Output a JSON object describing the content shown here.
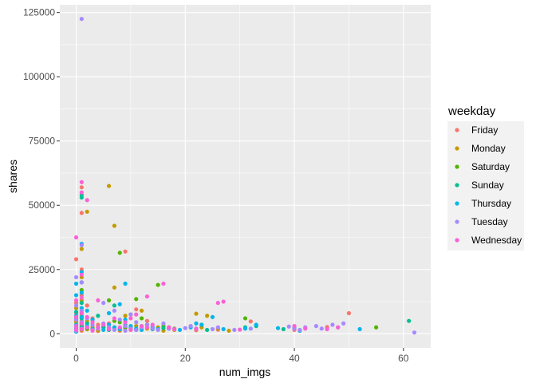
{
  "chart_data": {
    "type": "scatter",
    "title": "",
    "xlabel": "num_imgs",
    "ylabel": "shares",
    "xlim": [
      -3,
      65
    ],
    "ylim": [
      -5500,
      128000
    ],
    "x_ticks": [
      0,
      20,
      40,
      60
    ],
    "y_ticks": [
      0,
      25000,
      50000,
      75000,
      100000,
      125000
    ],
    "y_tick_labels": [
      "0",
      "25000",
      "50000",
      "75000",
      "100000",
      "125000"
    ],
    "grid": true,
    "legend_position": "right",
    "legend_title": "weekday",
    "series": [
      {
        "name": "Friday",
        "color": "#F8766D",
        "points": [
          [
            0,
            29000
          ],
          [
            0,
            12000
          ],
          [
            0,
            8000
          ],
          [
            0,
            5000
          ],
          [
            0,
            3000
          ],
          [
            0,
            1500
          ],
          [
            0,
            900
          ],
          [
            1,
            57000
          ],
          [
            1,
            47000
          ],
          [
            1,
            25000
          ],
          [
            1,
            15000
          ],
          [
            1,
            9000
          ],
          [
            1,
            5000
          ],
          [
            1,
            2500
          ],
          [
            1,
            1200
          ],
          [
            2,
            11000
          ],
          [
            2,
            4000
          ],
          [
            2,
            1800
          ],
          [
            3,
            6000
          ],
          [
            3,
            2000
          ],
          [
            4,
            3500
          ],
          [
            4,
            1100
          ],
          [
            5,
            2500
          ],
          [
            6,
            4000
          ],
          [
            6,
            1500
          ],
          [
            7,
            2000
          ],
          [
            8,
            1200
          ],
          [
            9,
            32000
          ],
          [
            9,
            3000
          ],
          [
            10,
            2000
          ],
          [
            11,
            9500
          ],
          [
            11,
            1500
          ],
          [
            12,
            2200
          ],
          [
            13,
            5000
          ],
          [
            15,
            1800
          ],
          [
            17,
            2500
          ],
          [
            22,
            1400
          ],
          [
            26,
            1600
          ],
          [
            32,
            4800
          ],
          [
            40,
            1500
          ],
          [
            41,
            1200
          ],
          [
            46,
            2600
          ],
          [
            50,
            8000
          ]
        ]
      },
      {
        "name": "Monday",
        "color": "#C49A00",
        "points": [
          [
            0,
            10000
          ],
          [
            0,
            4500
          ],
          [
            0,
            2000
          ],
          [
            0,
            1000
          ],
          [
            1,
            33000
          ],
          [
            1,
            22000
          ],
          [
            1,
            13000
          ],
          [
            1,
            7000
          ],
          [
            1,
            3500
          ],
          [
            1,
            1500
          ],
          [
            2,
            47500
          ],
          [
            2,
            5000
          ],
          [
            2,
            1800
          ],
          [
            3,
            2500
          ],
          [
            4,
            1300
          ],
          [
            6,
            57500
          ],
          [
            7,
            42000
          ],
          [
            7,
            18000
          ],
          [
            7,
            2500
          ],
          [
            8,
            1500
          ],
          [
            9,
            7000
          ],
          [
            9,
            2200
          ],
          [
            10,
            1500
          ],
          [
            11,
            3000
          ],
          [
            12,
            9000
          ],
          [
            13,
            2000
          ],
          [
            15,
            2500
          ],
          [
            16,
            1200
          ],
          [
            18,
            1500
          ],
          [
            22,
            7800
          ],
          [
            23,
            2500
          ],
          [
            24,
            7000
          ],
          [
            26,
            2000
          ],
          [
            28,
            1200
          ]
        ]
      },
      {
        "name": "Saturday",
        "color": "#53B400",
        "points": [
          [
            0,
            6000
          ],
          [
            0,
            2500
          ],
          [
            0,
            1200
          ],
          [
            1,
            17000
          ],
          [
            1,
            8000
          ],
          [
            1,
            3000
          ],
          [
            2,
            2000
          ],
          [
            3,
            1500
          ],
          [
            5,
            2800
          ],
          [
            6,
            13000
          ],
          [
            7,
            5000
          ],
          [
            8,
            31500
          ],
          [
            8,
            4500
          ],
          [
            9,
            2500
          ],
          [
            10,
            7500
          ],
          [
            11,
            13500
          ],
          [
            12,
            6000
          ],
          [
            13,
            3500
          ],
          [
            15,
            19000
          ],
          [
            16,
            3000
          ],
          [
            18,
            2000
          ],
          [
            23,
            3500
          ],
          [
            31,
            6000
          ],
          [
            55,
            2500
          ]
        ]
      },
      {
        "name": "Sunday",
        "color": "#00C094",
        "points": [
          [
            0,
            8500
          ],
          [
            0,
            3000
          ],
          [
            0,
            1500
          ],
          [
            1,
            54000
          ],
          [
            1,
            53000
          ],
          [
            1,
            20000
          ],
          [
            1,
            12000
          ],
          [
            1,
            6000
          ],
          [
            1,
            2500
          ],
          [
            2,
            4000
          ],
          [
            3,
            1800
          ],
          [
            4,
            7000
          ],
          [
            5,
            2500
          ],
          [
            6,
            1500
          ],
          [
            7,
            11000
          ],
          [
            8,
            2000
          ],
          [
            9,
            3500
          ],
          [
            10,
            2500
          ],
          [
            11,
            1500
          ],
          [
            12,
            3000
          ],
          [
            14,
            1800
          ],
          [
            16,
            2200
          ],
          [
            22,
            2000
          ],
          [
            24,
            1500
          ],
          [
            31,
            2500
          ],
          [
            33,
            3000
          ],
          [
            38,
            1800
          ],
          [
            40,
            2200
          ],
          [
            61,
            5000
          ]
        ]
      },
      {
        "name": "Thursday",
        "color": "#00B6EB",
        "points": [
          [
            0,
            19500
          ],
          [
            0,
            15000
          ],
          [
            0,
            7000
          ],
          [
            0,
            3500
          ],
          [
            0,
            1800
          ],
          [
            0,
            800
          ],
          [
            1,
            35000
          ],
          [
            1,
            24000
          ],
          [
            1,
            16000
          ],
          [
            1,
            10000
          ],
          [
            1,
            6500
          ],
          [
            1,
            4000
          ],
          [
            1,
            2000
          ],
          [
            2,
            9000
          ],
          [
            2,
            3000
          ],
          [
            3,
            5500
          ],
          [
            3,
            1800
          ],
          [
            4,
            2500
          ],
          [
            5,
            1500
          ],
          [
            6,
            8000
          ],
          [
            6,
            3500
          ],
          [
            7,
            2500
          ],
          [
            8,
            11500
          ],
          [
            8,
            1800
          ],
          [
            9,
            19500
          ],
          [
            9,
            5500
          ],
          [
            10,
            3000
          ],
          [
            11,
            2000
          ],
          [
            12,
            1500
          ],
          [
            13,
            3500
          ],
          [
            14,
            2500
          ],
          [
            15,
            1800
          ],
          [
            17,
            2000
          ],
          [
            19,
            1500
          ],
          [
            21,
            2500
          ],
          [
            22,
            4000
          ],
          [
            23,
            3500
          ],
          [
            25,
            6500
          ],
          [
            27,
            1800
          ],
          [
            31,
            2000
          ],
          [
            33,
            3500
          ],
          [
            37,
            2200
          ],
          [
            41,
            1200
          ],
          [
            52,
            1800
          ]
        ]
      },
      {
        "name": "Tuesday",
        "color": "#A58AFF",
        "points": [
          [
            0,
            22000
          ],
          [
            0,
            11000
          ],
          [
            0,
            5500
          ],
          [
            0,
            2500
          ],
          [
            0,
            1200
          ],
          [
            1,
            122500
          ],
          [
            1,
            34500
          ],
          [
            1,
            20000
          ],
          [
            1,
            9000
          ],
          [
            1,
            4500
          ],
          [
            1,
            2000
          ],
          [
            2,
            6000
          ],
          [
            2,
            2500
          ],
          [
            3,
            3500
          ],
          [
            3,
            1500
          ],
          [
            4,
            2000
          ],
          [
            5,
            12000
          ],
          [
            5,
            4000
          ],
          [
            6,
            2500
          ],
          [
            7,
            9000
          ],
          [
            7,
            1500
          ],
          [
            8,
            5500
          ],
          [
            9,
            3000
          ],
          [
            9,
            1200
          ],
          [
            10,
            7500
          ],
          [
            10,
            2000
          ],
          [
            11,
            4500
          ],
          [
            11,
            1500
          ],
          [
            12,
            2500
          ],
          [
            13,
            3500
          ],
          [
            14,
            2000
          ],
          [
            15,
            1500
          ],
          [
            16,
            4000
          ],
          [
            17,
            2000
          ],
          [
            20,
            2200
          ],
          [
            21,
            3000
          ],
          [
            25,
            1800
          ],
          [
            26,
            2500
          ],
          [
            29,
            1500
          ],
          [
            32,
            2000
          ],
          [
            39,
            2800
          ],
          [
            40,
            2000
          ],
          [
            41,
            1500
          ],
          [
            42,
            2500
          ],
          [
            44,
            3000
          ],
          [
            45,
            2000
          ],
          [
            47,
            3500
          ],
          [
            48,
            2500
          ],
          [
            49,
            4000
          ],
          [
            62,
            500
          ]
        ]
      },
      {
        "name": "Wednesday",
        "color": "#FB61D7",
        "points": [
          [
            0,
            37500
          ],
          [
            0,
            13000
          ],
          [
            0,
            6500
          ],
          [
            0,
            3000
          ],
          [
            0,
            1500
          ],
          [
            1,
            59000
          ],
          [
            1,
            55000
          ],
          [
            1,
            23000
          ],
          [
            1,
            14000
          ],
          [
            1,
            8000
          ],
          [
            1,
            4000
          ],
          [
            1,
            1800
          ],
          [
            2,
            52000
          ],
          [
            2,
            6500
          ],
          [
            2,
            2500
          ],
          [
            3,
            4500
          ],
          [
            3,
            1200
          ],
          [
            4,
            13000
          ],
          [
            4,
            2500
          ],
          [
            5,
            3500
          ],
          [
            6,
            1800
          ],
          [
            7,
            6000
          ],
          [
            8,
            2500
          ],
          [
            9,
            4500
          ],
          [
            10,
            6000
          ],
          [
            10,
            1500
          ],
          [
            11,
            7500
          ],
          [
            12,
            3000
          ],
          [
            13,
            14500
          ],
          [
            13,
            2500
          ],
          [
            14,
            3500
          ],
          [
            16,
            19500
          ],
          [
            17,
            2500
          ],
          [
            18,
            1800
          ],
          [
            22,
            2000
          ],
          [
            26,
            12000
          ],
          [
            27,
            12500
          ],
          [
            30,
            1600
          ],
          [
            40,
            3000
          ],
          [
            42,
            2000
          ],
          [
            46,
            1800
          ],
          [
            48,
            2500
          ]
        ]
      }
    ]
  }
}
